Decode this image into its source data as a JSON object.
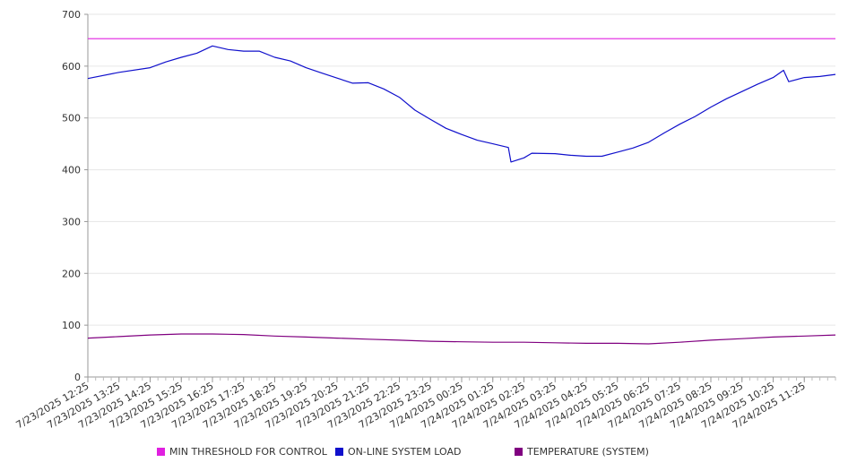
{
  "chart_data": {
    "type": "line",
    "title": "",
    "xlabel": "",
    "ylabel": "",
    "ylim": [
      0,
      700
    ],
    "y_ticks": [
      "0",
      "100",
      "200",
      "300",
      "400",
      "500",
      "600",
      "700"
    ],
    "grid": true,
    "legend_position": "bottom",
    "x_tick_labels": [
      "7/23/2025 12:25",
      "7/23/2025 13:25",
      "7/23/2025 14:25",
      "7/23/2025 15:25",
      "7/23/2025 16:25",
      "7/23/2025 17:25",
      "7/23/2025 18:25",
      "7/23/2025 19:25",
      "7/23/2025 20:25",
      "7/23/2025 21:25",
      "7/23/2025 22:25",
      "7/23/2025 23:25",
      "7/24/2025 00:25",
      "7/24/2025 01:25",
      "7/24/2025 02:25",
      "7/24/2025 03:25",
      "7/24/2025 04:25",
      "7/24/2025 05:25",
      "7/24/2025 06:25",
      "7/24/2025 07:25",
      "7/24/2025 08:25",
      "7/24/2025 09:25",
      "7/24/2025 10:25",
      "7/24/2025 11:25"
    ],
    "series": [
      {
        "name": "MIN THRESHOLD FOR CONTROL",
        "color": "#e020e0",
        "points": [
          [
            "7/23/2025 12:25",
            653
          ],
          [
            "7/24/2025 12:25",
            653
          ]
        ]
      },
      {
        "name": "ON-LINE SYSTEM LOAD",
        "color": "#1010cc",
        "points": [
          [
            "7/23/2025 12:25",
            576
          ],
          [
            "7/23/2025 13:25",
            588
          ],
          [
            "7/23/2025 14:25",
            597
          ],
          [
            "7/23/2025 14:55",
            608
          ],
          [
            "7/23/2025 15:25",
            617
          ],
          [
            "7/23/2025 15:55",
            625
          ],
          [
            "7/23/2025 16:25",
            639
          ],
          [
            "7/23/2025 16:55",
            632
          ],
          [
            "7/23/2025 17:25",
            629
          ],
          [
            "7/23/2025 17:55",
            629
          ],
          [
            "7/23/2025 18:25",
            617
          ],
          [
            "7/23/2025 18:55",
            610
          ],
          [
            "7/23/2025 19:25",
            597
          ],
          [
            "7/23/2025 19:55",
            587
          ],
          [
            "7/23/2025 20:25",
            577
          ],
          [
            "7/23/2025 20:55",
            567
          ],
          [
            "7/23/2025 21:25",
            568
          ],
          [
            "7/23/2025 21:55",
            556
          ],
          [
            "7/23/2025 22:25",
            540
          ],
          [
            "7/23/2025 22:55",
            515
          ],
          [
            "7/23/2025 23:25",
            497
          ],
          [
            "7/23/2025 23:55",
            480
          ],
          [
            "7/24/2025 00:25",
            468
          ],
          [
            "7/24/2025 00:55",
            457
          ],
          [
            "7/24/2025 01:25",
            450
          ],
          [
            "7/24/2025 01:55",
            443
          ],
          [
            "7/24/2025 02:00",
            415
          ],
          [
            "7/24/2025 02:25",
            423
          ],
          [
            "7/24/2025 02:40",
            432
          ],
          [
            "7/24/2025 03:25",
            431
          ],
          [
            "7/24/2025 03:55",
            428
          ],
          [
            "7/24/2025 04:25",
            426
          ],
          [
            "7/24/2025 04:55",
            426
          ],
          [
            "7/24/2025 05:25",
            434
          ],
          [
            "7/24/2025 05:55",
            442
          ],
          [
            "7/24/2025 06:25",
            453
          ],
          [
            "7/24/2025 06:55",
            471
          ],
          [
            "7/24/2025 07:25",
            488
          ],
          [
            "7/24/2025 07:55",
            503
          ],
          [
            "7/24/2025 08:25",
            521
          ],
          [
            "7/24/2025 08:55",
            537
          ],
          [
            "7/24/2025 09:25",
            551
          ],
          [
            "7/24/2025 09:55",
            565
          ],
          [
            "7/24/2025 10:25",
            578
          ],
          [
            "7/24/2025 10:45",
            592
          ],
          [
            "7/24/2025 10:55",
            570
          ],
          [
            "7/24/2025 11:25",
            578
          ],
          [
            "7/24/2025 11:55",
            580
          ],
          [
            "7/24/2025 12:25",
            584
          ]
        ]
      },
      {
        "name": "TEMPERATURE (SYSTEM)",
        "color": "#800080",
        "points": [
          [
            "7/23/2025 12:25",
            75
          ],
          [
            "7/23/2025 13:25",
            78
          ],
          [
            "7/23/2025 14:25",
            81
          ],
          [
            "7/23/2025 15:25",
            83
          ],
          [
            "7/23/2025 16:25",
            83
          ],
          [
            "7/23/2025 17:25",
            82
          ],
          [
            "7/23/2025 18:25",
            79
          ],
          [
            "7/23/2025 19:25",
            77
          ],
          [
            "7/23/2025 20:25",
            75
          ],
          [
            "7/23/2025 21:25",
            73
          ],
          [
            "7/23/2025 22:25",
            71
          ],
          [
            "7/23/2025 23:25",
            69
          ],
          [
            "7/24/2025 00:25",
            68
          ],
          [
            "7/24/2025 01:25",
            67
          ],
          [
            "7/24/2025 02:25",
            67
          ],
          [
            "7/24/2025 03:25",
            66
          ],
          [
            "7/24/2025 04:25",
            65
          ],
          [
            "7/24/2025 05:25",
            65
          ],
          [
            "7/24/2025 06:25",
            64
          ],
          [
            "7/24/2025 07:25",
            67
          ],
          [
            "7/24/2025 08:25",
            71
          ],
          [
            "7/24/2025 09:25",
            74
          ],
          [
            "7/24/2025 10:25",
            77
          ],
          [
            "7/24/2025 11:25",
            79
          ],
          [
            "7/24/2025 12:25",
            81
          ]
        ]
      }
    ]
  }
}
